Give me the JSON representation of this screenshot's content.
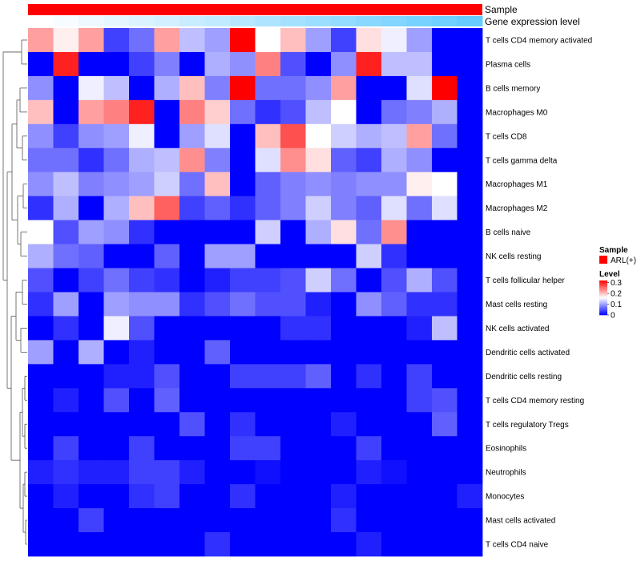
{
  "chart_data": {
    "type": "heatmap",
    "title": "",
    "annotation_tracks": [
      {
        "name": "Sample",
        "color": "#ff0000"
      },
      {
        "name": "Gene expression level",
        "colors": [
          "#ffffff",
          "#66ccff"
        ]
      }
    ],
    "row_labels": [
      "T cells CD4 memory activated",
      "Plasma cells",
      "B cells memory",
      "Macrophages M0",
      "T cells CD8",
      "T cells gamma delta",
      "Macrophages M1",
      "Macrophages M2",
      "B cells naive",
      "NK cells resting",
      "T cells follicular helper",
      "Mast cells resting",
      "NK cells activated",
      "Dendritic cells activated",
      "Dendritic cells resting",
      "T cells CD4 memory resting",
      "T cells regulatory  Tregs",
      "Eosinophils",
      "Neutrophils",
      "Monocytes",
      "Mast cells activated",
      "T cells CD4 naive"
    ],
    "n_columns": 18,
    "values": [
      [
        0.22,
        0.17,
        0.22,
        0.04,
        0.07,
        0.22,
        0.12,
        0.1,
        0.32,
        0.16,
        0.2,
        0.1,
        0.04,
        0.18,
        0.15,
        0.1,
        0.0,
        0.0
      ],
      [
        0.0,
        0.3,
        0.0,
        0.0,
        0.04,
        0.08,
        0.0,
        0.11,
        0.09,
        0.24,
        0.05,
        0.0,
        0.09,
        0.3,
        0.12,
        0.12,
        0.0,
        0.0
      ],
      [
        0.09,
        0.0,
        0.15,
        0.12,
        0.0,
        0.11,
        0.2,
        0.08,
        0.32,
        0.07,
        0.07,
        0.09,
        0.22,
        0.0,
        0.0,
        0.14,
        0.32,
        0.0
      ],
      [
        0.2,
        0.0,
        0.22,
        0.24,
        0.3,
        0.0,
        0.24,
        0.19,
        0.07,
        0.03,
        0.05,
        0.12,
        0.16,
        0.0,
        0.07,
        0.08,
        0.11,
        0.0
      ],
      [
        0.09,
        0.04,
        0.09,
        0.1,
        0.15,
        0.0,
        0.1,
        0.14,
        0.0,
        0.2,
        0.27,
        0.16,
        0.13,
        0.11,
        0.12,
        0.22,
        0.07,
        0.0
      ],
      [
        0.07,
        0.07,
        0.03,
        0.07,
        0.11,
        0.12,
        0.23,
        0.08,
        0.0,
        0.14,
        0.23,
        0.18,
        0.06,
        0.04,
        0.11,
        0.09,
        0.0,
        0.0
      ],
      [
        0.09,
        0.12,
        0.08,
        0.09,
        0.1,
        0.13,
        0.07,
        0.2,
        0.0,
        0.06,
        0.08,
        0.09,
        0.08,
        0.09,
        0.09,
        0.17,
        0.16,
        0.0
      ],
      [
        0.03,
        0.11,
        0.0,
        0.11,
        0.2,
        0.26,
        0.04,
        0.06,
        0.03,
        0.06,
        0.08,
        0.13,
        0.08,
        0.06,
        0.14,
        0.07,
        0.14,
        0.0
      ],
      [
        0.16,
        0.05,
        0.1,
        0.09,
        0.03,
        0.0,
        0.0,
        0.0,
        0.0,
        0.13,
        0.0,
        0.11,
        0.18,
        0.07,
        0.23,
        0.0,
        0.0,
        0.0
      ],
      [
        0.11,
        0.07,
        0.06,
        0.0,
        0.0,
        0.06,
        0.0,
        0.1,
        0.1,
        0.0,
        0.0,
        0.0,
        0.0,
        0.13,
        0.03,
        0.0,
        0.0,
        0.0
      ],
      [
        0.05,
        0.0,
        0.04,
        0.07,
        0.04,
        0.03,
        0.0,
        0.02,
        0.04,
        0.04,
        0.05,
        0.13,
        0.07,
        0.0,
        0.05,
        0.11,
        0.05,
        0.0
      ],
      [
        0.03,
        0.1,
        0.0,
        0.1,
        0.09,
        0.09,
        0.03,
        0.05,
        0.07,
        0.05,
        0.05,
        0.02,
        0.0,
        0.09,
        0.06,
        0.03,
        0.03,
        0.0
      ],
      [
        0.0,
        0.03,
        0.0,
        0.15,
        0.05,
        0.0,
        0.0,
        0.0,
        0.0,
        0.0,
        0.03,
        0.03,
        0.0,
        0.0,
        0.0,
        0.02,
        0.12,
        0.0
      ],
      [
        0.1,
        0.0,
        0.11,
        0.0,
        0.02,
        0.0,
        0.0,
        0.06,
        0.0,
        0.0,
        0.0,
        0.0,
        0.0,
        0.0,
        0.0,
        0.0,
        0.0,
        0.0
      ],
      [
        0.0,
        0.0,
        0.0,
        0.02,
        0.02,
        0.05,
        0.0,
        0.0,
        0.04,
        0.04,
        0.04,
        0.06,
        0.0,
        0.03,
        0.0,
        0.04,
        0.0,
        0.0
      ],
      [
        0.0,
        0.02,
        0.0,
        0.05,
        0.0,
        0.06,
        0.0,
        0.0,
        0.0,
        0.0,
        0.0,
        0.0,
        0.0,
        0.0,
        0.0,
        0.04,
        0.05,
        0.0
      ],
      [
        0.0,
        0.0,
        0.0,
        0.0,
        0.0,
        0.0,
        0.05,
        0.0,
        0.03,
        0.0,
        0.0,
        0.0,
        0.02,
        0.0,
        0.0,
        0.0,
        0.06,
        0.0
      ],
      [
        0.0,
        0.04,
        0.0,
        0.0,
        0.04,
        0.0,
        0.0,
        0.0,
        0.04,
        0.04,
        0.0,
        0.0,
        0.0,
        0.04,
        0.0,
        0.0,
        0.0,
        0.0
      ],
      [
        0.02,
        0.03,
        0.02,
        0.02,
        0.04,
        0.04,
        0.02,
        0.0,
        0.0,
        0.01,
        0.0,
        0.0,
        0.0,
        0.02,
        0.01,
        0.0,
        0.0,
        0.0
      ],
      [
        0.0,
        0.02,
        0.0,
        0.0,
        0.03,
        0.04,
        0.0,
        0.0,
        0.03,
        0.0,
        0.0,
        0.0,
        0.02,
        0.0,
        0.0,
        0.0,
        0.0,
        0.02
      ],
      [
        0.0,
        0.0,
        0.04,
        0.0,
        0.0,
        0.0,
        0.0,
        0.0,
        0.0,
        0.0,
        0.0,
        0.0,
        0.03,
        0.0,
        0.0,
        0.0,
        0.0,
        0.0
      ],
      [
        0.0,
        0.0,
        0.0,
        0.0,
        0.0,
        0.0,
        0.0,
        0.03,
        0.0,
        0.0,
        0.0,
        0.0,
        0.0,
        0.02,
        0.0,
        0.0,
        0.0,
        0.0
      ]
    ],
    "colorscale": {
      "low": "#0000ff",
      "mid": "#ffffff",
      "high": "#ff0000",
      "min": 0,
      "mid_value": 0.16,
      "max": 0.32
    },
    "legend": {
      "sample_title": "Sample",
      "sample_entry": "ARL(+)",
      "sample_color": "#ff0000",
      "level_title": "Level",
      "level_ticks": [
        {
          "label": "0.3",
          "value": 0.3
        },
        {
          "label": "0.2",
          "value": 0.2
        },
        {
          "label": "0.1",
          "value": 0.1
        },
        {
          "label": "0",
          "value": 0
        }
      ],
      "position": "right"
    }
  }
}
